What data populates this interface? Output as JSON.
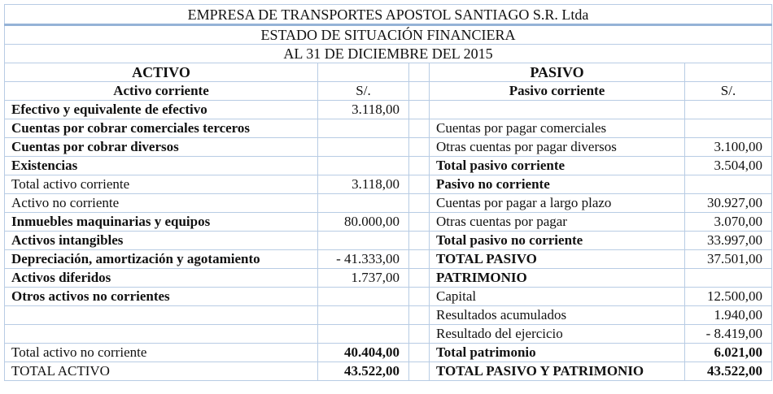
{
  "header": {
    "company": "EMPRESA DE TRANSPORTES APOSTOL SANTIAGO S.R. Ltda",
    "statement": "ESTADO DE SITUACIÓN FINANCIERA",
    "date": "AL 31 DE DICIEMBRE DEL 2015"
  },
  "activo": {
    "section_title": "ACTIVO",
    "subheader": "Activo corriente",
    "currency": "S/.",
    "rows": [
      {
        "label": "Efectivo y equivalente de efectivo",
        "value": "3.118,00",
        "bold": true
      },
      {
        "label": "Cuentas por cobrar comerciales terceros",
        "value": "",
        "bold": true
      },
      {
        "label": "Cuentas por cobrar diversos",
        "value": "",
        "bold": true
      },
      {
        "label": "Existencias",
        "value": "",
        "bold": true
      },
      {
        "label": "Total activo corriente",
        "value": "3.118,00",
        "bold": false
      },
      {
        "label": "Activo no corriente",
        "value": "",
        "bold": false
      },
      {
        "label": "Inmuebles maquinarias y equipos",
        "value": "80.000,00",
        "bold": true
      },
      {
        "label": "Activos intangibles",
        "value": "",
        "bold": true
      },
      {
        "label": "Depreciación, amortización y agotamiento",
        "value": "- 41.333,00",
        "bold": true
      },
      {
        "label": "Activos diferidos",
        "value": "1.737,00",
        "bold": true
      },
      {
        "label": "Otros activos no corrientes",
        "value": "",
        "bold": true
      },
      {
        "label": "",
        "value": "",
        "bold": false
      },
      {
        "label": "",
        "value": "",
        "bold": false
      },
      {
        "label": "Total activo no corriente",
        "value": "40.404,00",
        "bold": false,
        "value_bold": true
      },
      {
        "label": "TOTAL ACTIVO",
        "value": "43.522,00",
        "bold": false,
        "value_bold": true
      }
    ]
  },
  "pasivo": {
    "section_title": "PASIVO",
    "subheader": "Pasivo corriente",
    "currency": "S/.",
    "rows": [
      {
        "label": "",
        "value": "",
        "bold": false
      },
      {
        "label": "Cuentas por pagar comerciales",
        "value": "",
        "bold": false
      },
      {
        "label": "Otras cuentas por pagar diversos",
        "value": "3.100,00",
        "bold": false
      },
      {
        "label": "Total pasivo corriente",
        "value": "3.504,00",
        "bold": true
      },
      {
        "label": "Pasivo no corriente",
        "value": "",
        "bold": true
      },
      {
        "label": "Cuentas por pagar a largo plazo",
        "value": "30.927,00",
        "bold": false
      },
      {
        "label": "Otras cuentas por pagar",
        "value": "3.070,00",
        "bold": false
      },
      {
        "label": "Total pasivo no corriente",
        "value": "33.997,00",
        "bold": true
      },
      {
        "label": "TOTAL PASIVO",
        "value": "37.501,00",
        "bold": true
      },
      {
        "label": "PATRIMONIO",
        "value": "",
        "bold": true
      },
      {
        "label": "Capital",
        "value": "12.500,00",
        "bold": false
      },
      {
        "label": "Resultados acumulados",
        "value": "1.940,00",
        "bold": false
      },
      {
        "label": "Resultado del ejercicio",
        "value": "- 8.419,00",
        "bold": false
      },
      {
        "label": "Total patrimonio",
        "value": "6.021,00",
        "bold": true,
        "value_bold": true
      },
      {
        "label": "TOTAL PASIVO Y PATRIMONIO",
        "value": "43.522,00",
        "bold": true,
        "value_bold": true
      }
    ]
  },
  "colors": {
    "grid": "#b8cce4",
    "title_rule": "#95b3d7",
    "text": "#111111"
  }
}
